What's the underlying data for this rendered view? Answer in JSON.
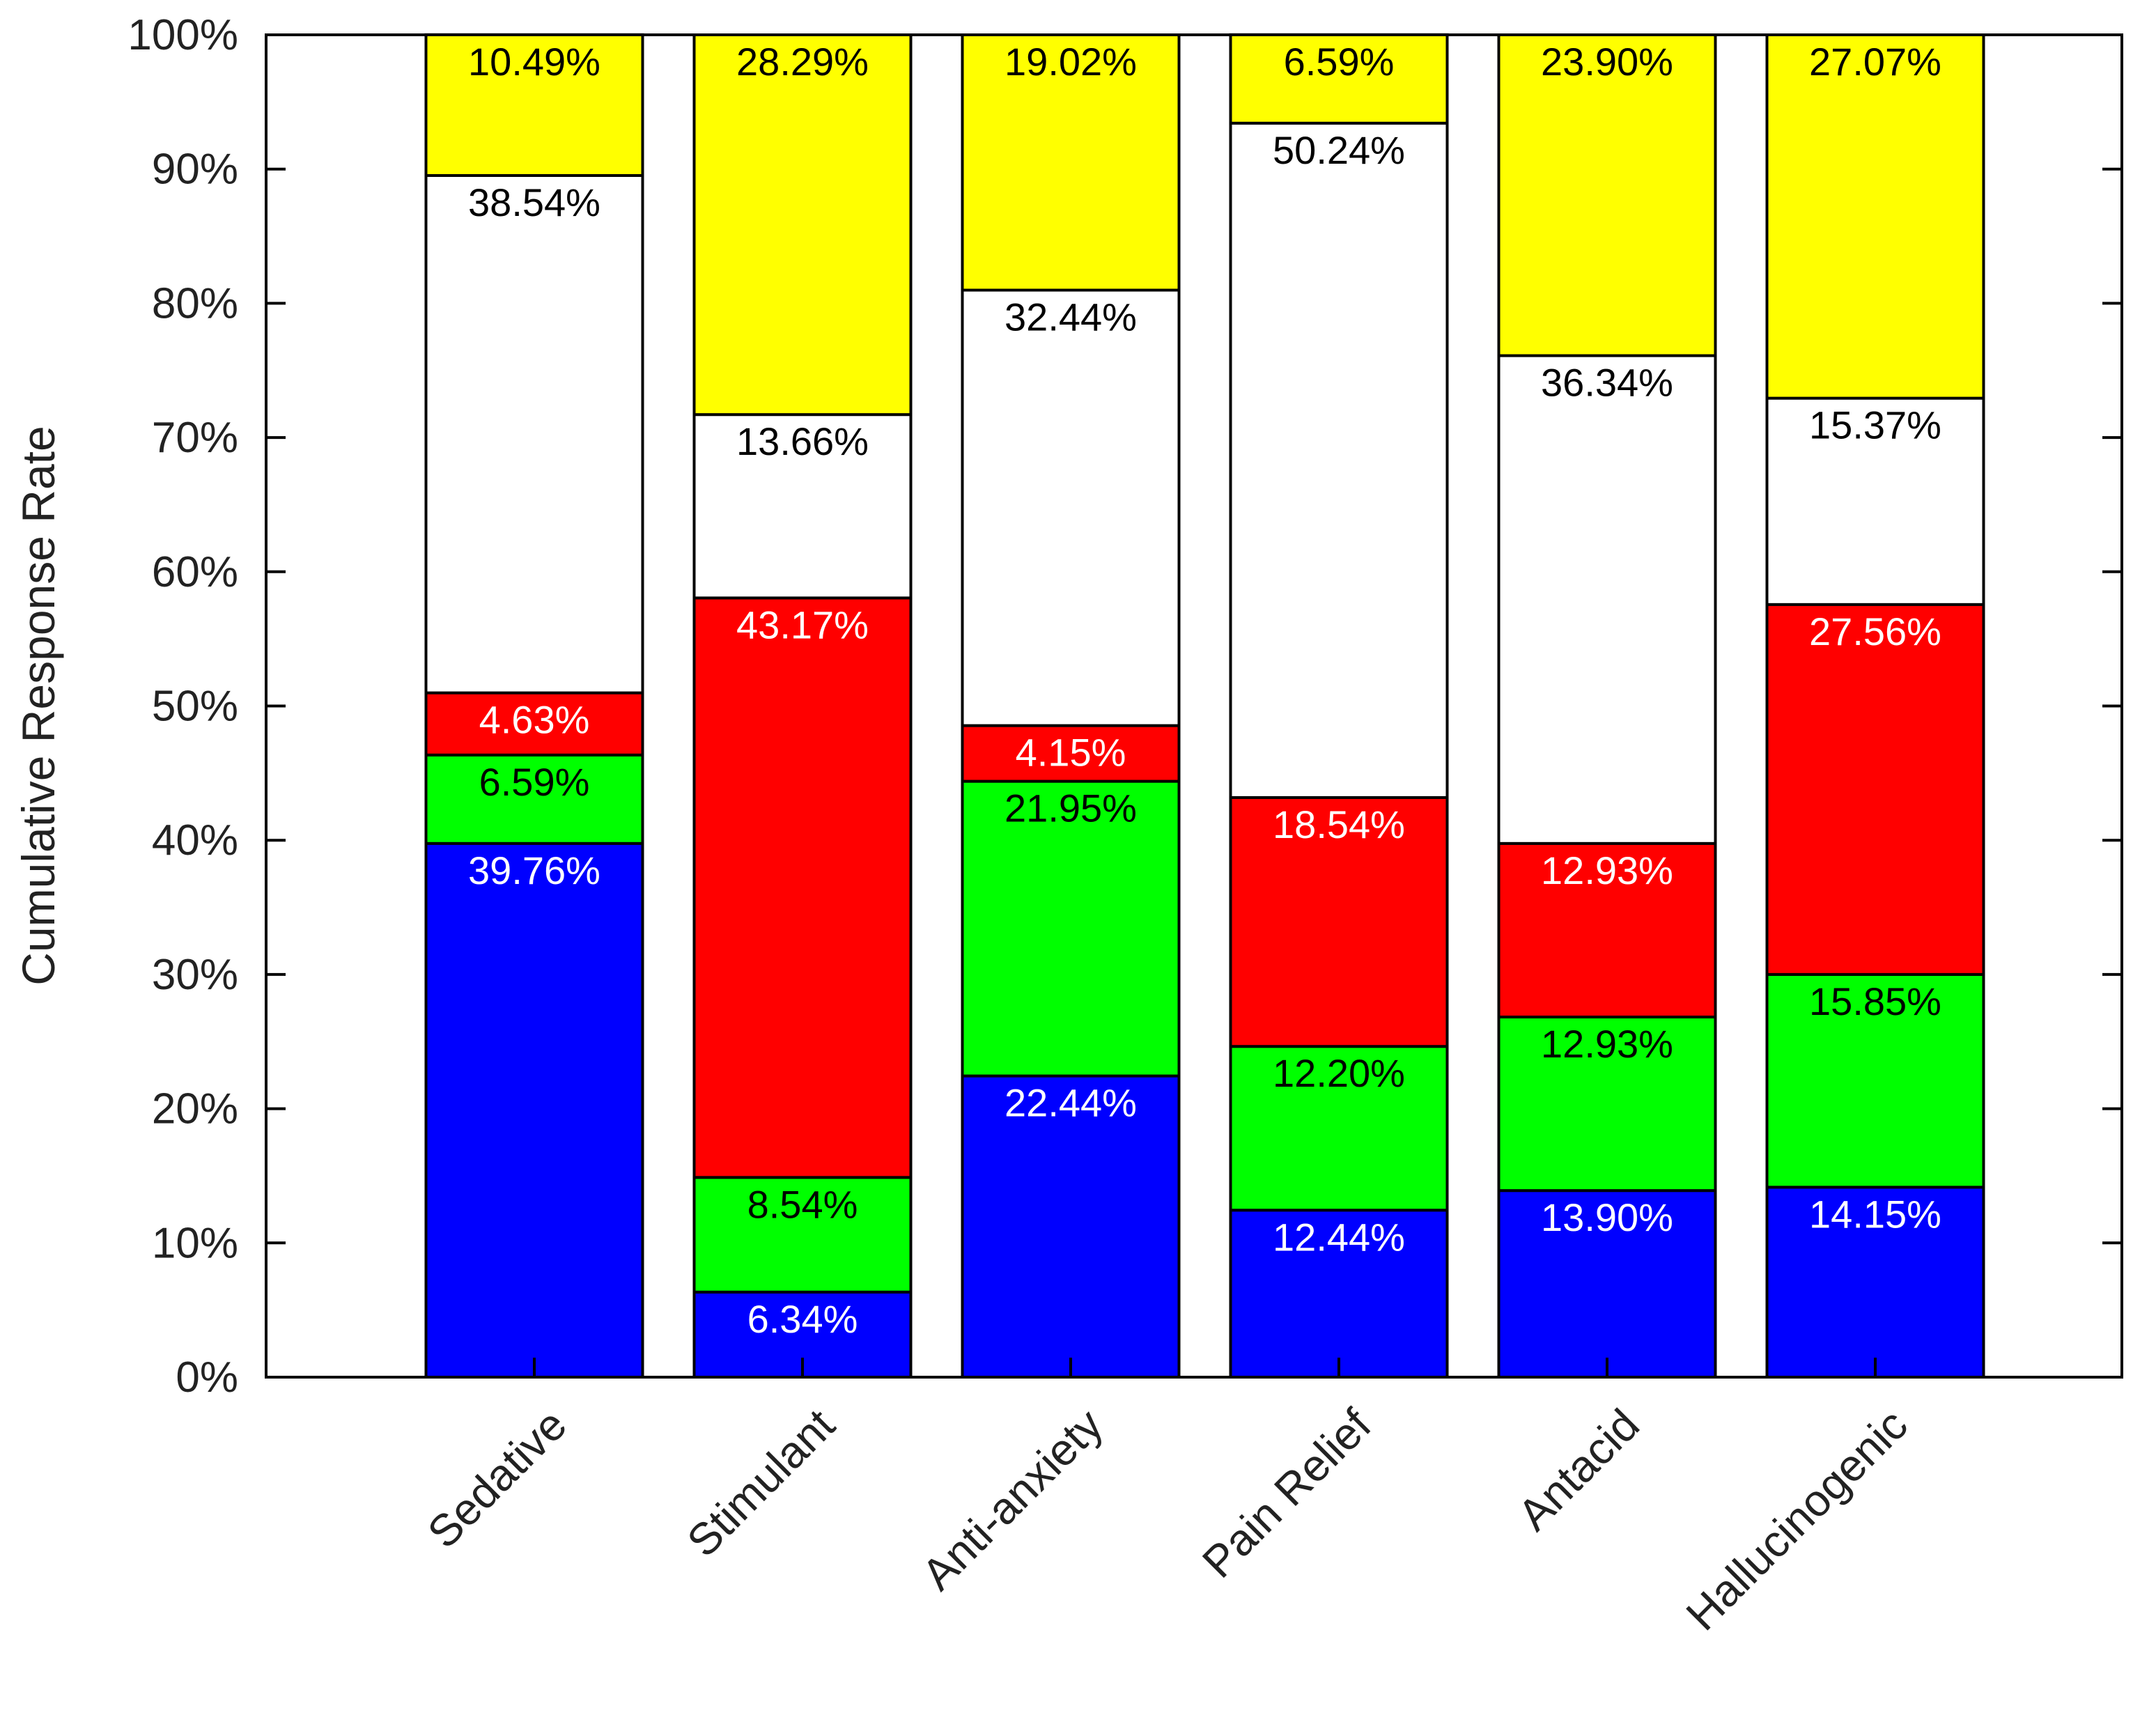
{
  "chart_data": {
    "type": "bar",
    "stacked": true,
    "title": "",
    "xlabel": "",
    "ylabel": "Cumulative Response Rate",
    "ylim": [
      0,
      100
    ],
    "yticks": [
      "0%",
      "10%",
      "20%",
      "30%",
      "40%",
      "50%",
      "60%",
      "70%",
      "80%",
      "90%",
      "100%"
    ],
    "grid": false,
    "categories": [
      "Sedative",
      "Stimulant",
      "Anti-anxiety",
      "Pain Relief",
      "Antacid",
      "Hallucinogenic"
    ],
    "series": [
      {
        "name": "blue",
        "color": "#0000ff",
        "label_color": "#ffffff",
        "values": [
          39.76,
          6.34,
          22.44,
          12.44,
          13.9,
          14.15
        ],
        "labels": [
          "39.76%",
          "6.34%",
          "22.44%",
          "12.44%",
          "13.90%",
          "14.15%"
        ]
      },
      {
        "name": "green",
        "color": "#00ff00",
        "label_color": "#000000",
        "values": [
          6.59,
          8.54,
          21.95,
          12.2,
          12.93,
          15.85
        ],
        "labels": [
          "6.59%",
          "8.54%",
          "21.95%",
          "12.20%",
          "12.93%",
          "15.85%"
        ]
      },
      {
        "name": "red",
        "color": "#ff0000",
        "label_color": "#ffffff",
        "values": [
          4.63,
          43.17,
          4.15,
          18.54,
          12.93,
          27.56
        ],
        "labels": [
          "4.63%",
          "43.17%",
          "4.15%",
          "18.54%",
          "12.93%",
          "27.56%"
        ]
      },
      {
        "name": "white",
        "color": "#ffffff",
        "label_color": "#000000",
        "values": [
          38.54,
          13.66,
          32.44,
          50.24,
          36.34,
          15.37
        ],
        "labels": [
          "38.54%",
          "13.66%",
          "32.44%",
          "50.24%",
          "36.34%",
          "15.37%"
        ]
      },
      {
        "name": "yellow",
        "color": "#ffff00",
        "label_color": "#000000",
        "values": [
          10.49,
          28.29,
          19.02,
          6.59,
          23.9,
          27.07
        ],
        "labels": [
          "10.49%",
          "28.29%",
          "19.02%",
          "6.59%",
          "23.90%",
          "27.07%"
        ]
      }
    ]
  }
}
